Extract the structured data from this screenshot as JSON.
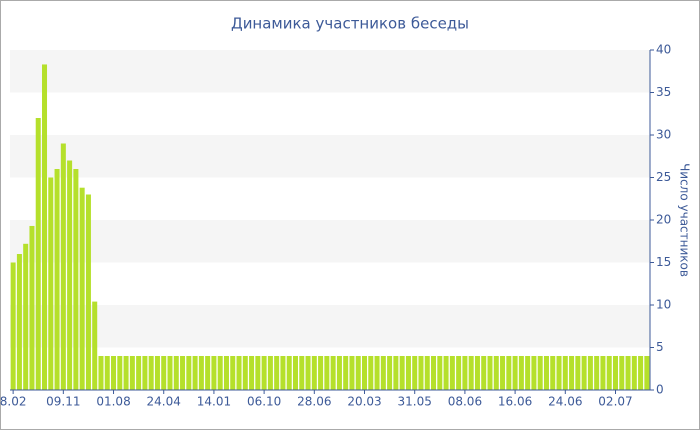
{
  "chart_data": {
    "type": "bar",
    "title": "Динамика участников беседы",
    "y_axis_label": "Число участников",
    "categories": [
      "8.02",
      null,
      null,
      null,
      null,
      null,
      null,
      null,
      "09.11",
      null,
      null,
      null,
      null,
      null,
      null,
      null,
      "01.08",
      null,
      null,
      null,
      null,
      null,
      null,
      null,
      "24.04",
      null,
      null,
      null,
      null,
      null,
      null,
      null,
      "14.01",
      null,
      null,
      null,
      null,
      null,
      null,
      null,
      "06.10",
      null,
      null,
      null,
      null,
      null,
      null,
      null,
      "28.06",
      null,
      null,
      null,
      null,
      null,
      null,
      null,
      "20.03",
      null,
      null,
      null,
      null,
      null,
      null,
      null,
      "31.05",
      null,
      null,
      null,
      null,
      null,
      null,
      null,
      "08.06",
      null,
      null,
      null,
      null,
      null,
      null,
      null,
      "16.06",
      null,
      null,
      null,
      null,
      null,
      null,
      null,
      "24.06",
      null,
      null,
      null,
      null,
      null,
      null,
      null,
      "02.07",
      null,
      null,
      null,
      null,
      null
    ],
    "values": [
      15,
      16,
      17.2,
      19.3,
      32,
      38.3,
      25,
      26,
      29,
      27,
      26,
      23.8,
      23,
      10.4,
      4,
      4,
      4,
      4,
      4,
      4,
      4,
      4,
      4,
      4,
      4,
      4,
      4,
      4,
      4,
      4,
      4,
      4,
      4,
      4,
      4,
      4,
      4,
      4,
      4,
      4,
      4,
      4,
      4,
      4,
      4,
      4,
      4,
      4,
      4,
      4,
      4,
      4,
      4,
      4,
      4,
      4,
      4,
      4,
      4,
      4,
      4,
      4,
      4,
      4,
      4,
      4,
      4,
      4,
      4,
      4,
      4,
      4,
      4,
      4,
      4,
      4,
      4,
      4,
      4,
      4,
      4,
      4,
      4,
      4,
      4,
      4,
      4,
      4,
      4,
      4,
      4,
      4,
      4,
      4,
      4,
      4,
      4,
      4,
      4,
      4,
      4,
      4
    ],
    "color": "#b5e02b",
    "ylim": [
      0,
      40
    ],
    "yticks": [
      0,
      5,
      10,
      15,
      20,
      25,
      30,
      35,
      40
    ],
    "grid": "bands",
    "y_axis_side": "right"
  }
}
